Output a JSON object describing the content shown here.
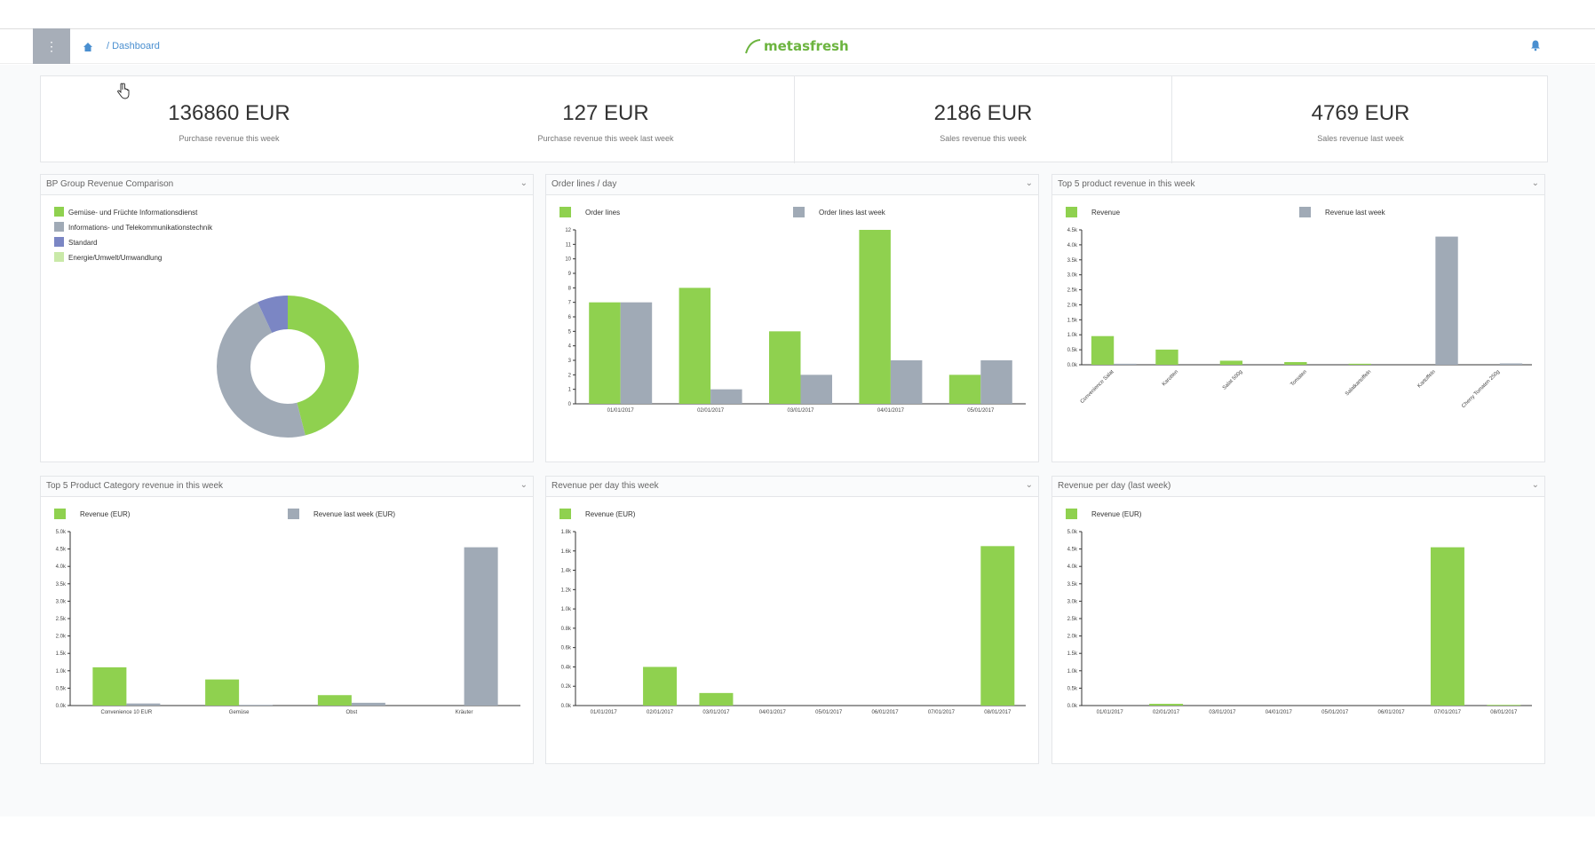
{
  "header": {
    "menu_icon": "menu-dots-icon",
    "home_icon": "home-icon",
    "breadcrumb": "/ Dashboard",
    "logo_text": "metasfresh",
    "notification_icon": "bell-icon"
  },
  "kpis": [
    {
      "value": "136860 EUR",
      "label": "Purchase revenue this week"
    },
    {
      "value": "127 EUR",
      "label": "Purchase revenue this week last week"
    },
    {
      "value": "2186 EUR",
      "label": "Sales revenue this week"
    },
    {
      "value": "4769 EUR",
      "label": "Sales revenue last week"
    }
  ],
  "panels": [
    {
      "title": "BP Group Revenue Comparison"
    },
    {
      "title": "Order lines / day"
    },
    {
      "title": "Top 5 product revenue in this week"
    },
    {
      "title": "Top 5 Product Category revenue in this week"
    },
    {
      "title": "Revenue per day this week"
    },
    {
      "title": "Revenue per day (last week)"
    }
  ],
  "colors": {
    "green": "#8fd14f",
    "grey": "#a0aab6",
    "blue": "#7b86c4",
    "lightgreen": "#c9e9a8",
    "brand": "#6cb43f"
  },
  "chart_data": [
    {
      "type": "pie",
      "title": "BP Group Revenue Comparison",
      "legend": [
        "Gemüse- und Früchte Informationsdienst",
        "Informations- und Telekommunikationstechnik",
        "Standard",
        "Energie/Umwelt/Umwandlung"
      ],
      "values": [
        46,
        47,
        7,
        0
      ]
    },
    {
      "type": "bar",
      "title": "Order lines / day",
      "categories": [
        "01/01/2017",
        "02/01/2017",
        "03/01/2017",
        "04/01/2017",
        "05/01/2017"
      ],
      "series": [
        {
          "name": "Order lines",
          "values": [
            7,
            8,
            5,
            12,
            2
          ]
        },
        {
          "name": "Order lines last week",
          "values": [
            7,
            1,
            2,
            3,
            3
          ]
        }
      ],
      "ylim": [
        0,
        12
      ],
      "yticks": [
        "0",
        "1",
        "2",
        "3",
        "4",
        "5",
        "6",
        "7",
        "8",
        "9",
        "10",
        "11",
        "12"
      ]
    },
    {
      "type": "bar",
      "title": "Top 5 product revenue in this week",
      "categories": [
        "Convenience Salat",
        "Karotten",
        "Salat 500g",
        "Tomaten",
        "Salatkartoffeln",
        "Kartoffeln",
        "Cherry Tomaten 250g"
      ],
      "series": [
        {
          "name": "Revenue",
          "values": [
            850,
            450,
            120,
            80,
            30,
            0,
            0
          ]
        },
        {
          "name": "Revenue last week",
          "values": [
            30,
            0,
            0,
            0,
            0,
            3800,
            40
          ]
        }
      ],
      "ylim": [
        0,
        4000
      ],
      "yticks": [
        "0.0k",
        "0.5k",
        "1.0k",
        "1.5k",
        "2.0k",
        "2.5k",
        "3.0k",
        "3.5k",
        "4.0k",
        "4.5k"
      ]
    },
    {
      "type": "bar",
      "title": "Top 5 Product Category revenue in this week",
      "categories": [
        "Convenience 10 EUR",
        "Gemüse",
        "Obst",
        "Kräuter"
      ],
      "series": [
        {
          "name": "Revenue (EUR)",
          "values": [
            1100,
            750,
            300,
            0
          ]
        },
        {
          "name": "Revenue last week (EUR)",
          "values": [
            60,
            20,
            80,
            4550
          ]
        }
      ],
      "ylim": [
        0,
        5000
      ],
      "yticks": [
        "0.0k",
        "0.5k",
        "1.0k",
        "1.5k",
        "2.0k",
        "2.5k",
        "3.0k",
        "3.5k",
        "4.0k",
        "4.5k",
        "5.0k"
      ]
    },
    {
      "type": "bar",
      "title": "Revenue per day this week",
      "categories": [
        "01/01/2017",
        "02/01/2017",
        "03/01/2017",
        "04/01/2017",
        "05/01/2017",
        "06/01/2017",
        "07/01/2017",
        "08/01/2017"
      ],
      "series": [
        {
          "name": "Revenue (EUR)",
          "values": [
            0,
            400,
            130,
            0,
            0,
            0,
            0,
            1650
          ]
        }
      ],
      "ylim": [
        0,
        1800
      ],
      "yticks": [
        "0.0k",
        "0.2k",
        "0.4k",
        "0.6k",
        "0.8k",
        "1.0k",
        "1.2k",
        "1.4k",
        "1.6k",
        "1.8k"
      ]
    },
    {
      "type": "bar",
      "title": "Revenue per day (last week)",
      "categories": [
        "01/01/2017",
        "02/01/2017",
        "03/01/2017",
        "04/01/2017",
        "05/01/2017",
        "06/01/2017",
        "07/01/2017",
        "08/01/2017"
      ],
      "series": [
        {
          "name": "Revenue (EUR)",
          "values": [
            0,
            50,
            0,
            0,
            0,
            0,
            4550,
            20
          ]
        }
      ],
      "ylim": [
        0,
        5000
      ],
      "yticks": [
        "0.0k",
        "0.5k",
        "1.0k",
        "1.5k",
        "2.0k",
        "2.5k",
        "3.0k",
        "3.5k",
        "4.0k",
        "4.5k",
        "5.0k"
      ]
    }
  ]
}
